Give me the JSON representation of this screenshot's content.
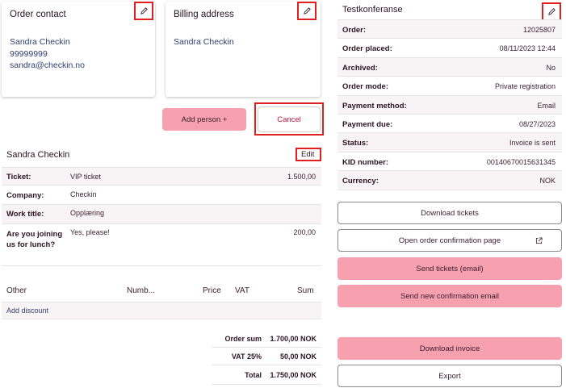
{
  "order_contact": {
    "title": "Order contact",
    "name": "Sandra Checkin",
    "phone": "99999999",
    "email": "sandra@checkin.no"
  },
  "billing_address": {
    "title": "Billing address",
    "name": "Sandra Checkin"
  },
  "actions": {
    "add_person": "Add person +",
    "cancel": "Cancel"
  },
  "participant": {
    "name": "Sandra Checkin",
    "edit": "Edit",
    "rows": [
      {
        "label": "Ticket:",
        "value": "VIP ticket",
        "amount": "1.500,00"
      },
      {
        "label": "Company:",
        "value": "Checkin",
        "amount": ""
      },
      {
        "label": "Work title:",
        "value": "Opplæring",
        "amount": ""
      },
      {
        "label": "Are you joining us for lunch?",
        "value": "Yes, please!",
        "amount": "200,00"
      }
    ]
  },
  "other_table": {
    "headers": {
      "other": "Other",
      "number": "Numb...",
      "price": "Price",
      "vat": "VAT",
      "sum": "Sum"
    },
    "add_discount": "Add discount"
  },
  "totals": [
    {
      "label": "Order sum",
      "value": "1.700,00 NOK"
    },
    {
      "label": "VAT 25%",
      "value": "50,00 NOK"
    },
    {
      "label": "Total",
      "value": "1.750,00 NOK"
    }
  ],
  "order_info": {
    "title": "Testkonferanse",
    "rows": [
      {
        "label": "Order:",
        "value": "12025807"
      },
      {
        "label": "Order placed:",
        "value": "08/11/2023 12:44"
      },
      {
        "label": "Archived:",
        "value": "No"
      },
      {
        "label": "Order mode:",
        "value": "Private registration"
      },
      {
        "label": "Payment method:",
        "value": "Email"
      },
      {
        "label": "Payment due:",
        "value": "08/27/2023"
      },
      {
        "label": "Status:",
        "value": "Invoice is sent"
      },
      {
        "label": "KID number:",
        "value": "00140670015631345"
      },
      {
        "label": "Currency:",
        "value": "NOK"
      }
    ]
  },
  "side_buttons": {
    "download_tickets": "Download tickets",
    "open_confirmation": "Open order confirmation page",
    "send_tickets": "Send tickets (email)",
    "send_confirmation": "Send new confirmation email",
    "download_invoice": "Download invoice",
    "export": "Export"
  },
  "colors": {
    "accent_pink": "#f7a1b0",
    "highlight_red": "#e02020",
    "link_blue": "#2c3e6e"
  }
}
